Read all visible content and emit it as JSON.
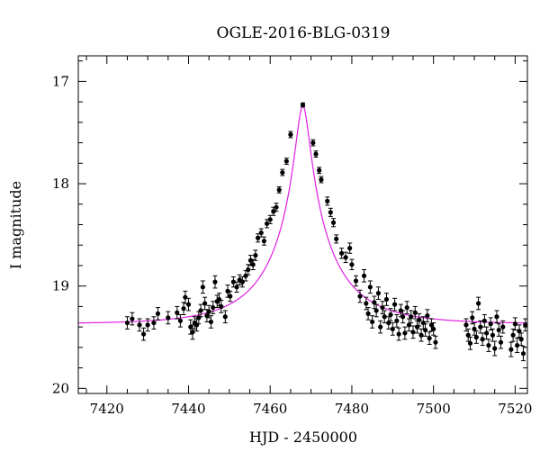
{
  "chart_data": {
    "type": "scatter",
    "title": "OGLE-2016-BLG-0319",
    "xlabel": "HJD - 2450000",
    "ylabel": "I magnitude",
    "xlim": [
      7413,
      7523
    ],
    "ylim": [
      20.05,
      16.75
    ],
    "y_axis_inverted": true,
    "x_ticks": [
      7420,
      7440,
      7460,
      7480,
      7500,
      7520
    ],
    "y_ticks": [
      17,
      18,
      19,
      20
    ],
    "colors": {
      "points": "#000000",
      "model": "#e020e0"
    },
    "model": {
      "type": "point-lens microlensing fit",
      "t0": 7468.0,
      "peak_mag": 17.24,
      "baseline_mag": 19.37,
      "u0": 0.095,
      "tE": 17.0
    },
    "series": [
      {
        "points": [
          [
            7425.0,
            19.36,
            0.06
          ],
          [
            7426.2,
            19.32,
            0.06
          ],
          [
            7428.0,
            19.38,
            0.06
          ],
          [
            7429.0,
            19.47,
            0.06
          ],
          [
            7430.0,
            19.38,
            0.06
          ],
          [
            7431.5,
            19.36,
            0.06
          ],
          [
            7432.5,
            19.27,
            0.06
          ],
          [
            7435.0,
            19.31,
            0.06
          ],
          [
            7437.2,
            19.26,
            0.06
          ],
          [
            7438.0,
            19.34,
            0.06
          ],
          [
            7438.8,
            19.22,
            0.06
          ],
          [
            7439.2,
            19.11,
            0.06
          ],
          [
            7440.0,
            19.18,
            0.06
          ],
          [
            7440.5,
            19.4,
            0.07
          ],
          [
            7441.0,
            19.45,
            0.07
          ],
          [
            7441.5,
            19.36,
            0.06
          ],
          [
            7442.0,
            19.38,
            0.06
          ],
          [
            7442.5,
            19.31,
            0.06
          ],
          [
            7443.0,
            19.24,
            0.06
          ],
          [
            7443.5,
            19.01,
            0.06
          ],
          [
            7444.0,
            19.17,
            0.06
          ],
          [
            7444.5,
            19.29,
            0.06
          ],
          [
            7445.0,
            19.25,
            0.06
          ],
          [
            7445.5,
            19.35,
            0.06
          ],
          [
            7446.0,
            19.21,
            0.06
          ],
          [
            7446.5,
            18.96,
            0.06
          ],
          [
            7447.0,
            19.15,
            0.06
          ],
          [
            7447.5,
            19.13,
            0.06
          ],
          [
            7448.0,
            19.2,
            0.06
          ],
          [
            7449.0,
            19.3,
            0.06
          ],
          [
            7449.6,
            19.05,
            0.06
          ],
          [
            7450.2,
            19.1,
            0.05
          ],
          [
            7451.0,
            18.96,
            0.05
          ],
          [
            7451.8,
            19.01,
            0.05
          ],
          [
            7452.5,
            18.94,
            0.05
          ],
          [
            7453.2,
            18.96,
            0.05
          ],
          [
            7454.0,
            18.9,
            0.05
          ],
          [
            7454.6,
            18.84,
            0.05
          ],
          [
            7455.2,
            18.75,
            0.05
          ],
          [
            7455.8,
            18.79,
            0.05
          ],
          [
            7456.4,
            18.7,
            0.05
          ],
          [
            7457.0,
            18.53,
            0.04
          ],
          [
            7457.8,
            18.48,
            0.04
          ],
          [
            7458.5,
            18.56,
            0.04
          ],
          [
            7459.2,
            18.39,
            0.04
          ],
          [
            7460.0,
            18.35,
            0.04
          ],
          [
            7460.8,
            18.27,
            0.04
          ],
          [
            7461.5,
            18.23,
            0.04
          ],
          [
            7462.2,
            18.06,
            0.03
          ],
          [
            7463.0,
            17.89,
            0.03
          ],
          [
            7464.0,
            17.78,
            0.03
          ],
          [
            7465.0,
            17.52,
            0.03
          ],
          [
            7468.0,
            17.23,
            0.02
          ],
          [
            7470.5,
            17.6,
            0.03
          ],
          [
            7471.2,
            17.71,
            0.03
          ],
          [
            7472.0,
            17.87,
            0.03
          ],
          [
            7472.5,
            17.96,
            0.03
          ],
          [
            7474.0,
            18.17,
            0.04
          ],
          [
            7474.8,
            18.28,
            0.04
          ],
          [
            7475.5,
            18.38,
            0.04
          ],
          [
            7476.2,
            18.54,
            0.04
          ],
          [
            7477.5,
            18.68,
            0.05
          ],
          [
            7478.5,
            18.72,
            0.05
          ],
          [
            7479.5,
            18.63,
            0.05
          ],
          [
            7480.0,
            18.79,
            0.05
          ],
          [
            7481.0,
            18.95,
            0.05
          ],
          [
            7482.0,
            19.1,
            0.06
          ],
          [
            7483.0,
            18.9,
            0.06
          ],
          [
            7483.5,
            19.17,
            0.06
          ],
          [
            7484.0,
            19.27,
            0.06
          ],
          [
            7484.5,
            19.01,
            0.06
          ],
          [
            7485.0,
            19.35,
            0.06
          ],
          [
            7485.5,
            19.16,
            0.06
          ],
          [
            7486.0,
            19.24,
            0.06
          ],
          [
            7486.5,
            19.07,
            0.06
          ],
          [
            7487.0,
            19.4,
            0.06
          ],
          [
            7487.5,
            19.21,
            0.06
          ],
          [
            7488.0,
            19.3,
            0.06
          ],
          [
            7488.5,
            19.13,
            0.06
          ],
          [
            7489.0,
            19.36,
            0.06
          ],
          [
            7489.5,
            19.28,
            0.06
          ],
          [
            7490.0,
            19.42,
            0.06
          ],
          [
            7490.5,
            19.18,
            0.06
          ],
          [
            7491.0,
            19.34,
            0.06
          ],
          [
            7491.5,
            19.47,
            0.06
          ],
          [
            7492.0,
            19.24,
            0.06
          ],
          [
            7492.5,
            19.3,
            0.06
          ],
          [
            7493.0,
            19.46,
            0.06
          ],
          [
            7493.5,
            19.21,
            0.06
          ],
          [
            7494.0,
            19.38,
            0.06
          ],
          [
            7494.5,
            19.3,
            0.06
          ],
          [
            7495.0,
            19.45,
            0.06
          ],
          [
            7495.5,
            19.26,
            0.06
          ],
          [
            7496.0,
            19.4,
            0.06
          ],
          [
            7496.5,
            19.33,
            0.06
          ],
          [
            7497.0,
            19.48,
            0.06
          ],
          [
            7497.5,
            19.36,
            0.06
          ],
          [
            7498.0,
            19.43,
            0.06
          ],
          [
            7498.5,
            19.29,
            0.06
          ],
          [
            7499.0,
            19.51,
            0.06
          ],
          [
            7499.5,
            19.38,
            0.06
          ],
          [
            7500.0,
            19.42,
            0.06
          ],
          [
            7500.5,
            19.55,
            0.06
          ],
          [
            7508.0,
            19.38,
            0.06
          ],
          [
            7508.5,
            19.48,
            0.06
          ],
          [
            7509.0,
            19.56,
            0.06
          ],
          [
            7509.5,
            19.31,
            0.06
          ],
          [
            7510.0,
            19.42,
            0.06
          ],
          [
            7510.5,
            19.5,
            0.06
          ],
          [
            7511.0,
            19.17,
            0.06
          ],
          [
            7511.5,
            19.4,
            0.06
          ],
          [
            7512.0,
            19.52,
            0.06
          ],
          [
            7512.5,
            19.34,
            0.06
          ],
          [
            7513.0,
            19.46,
            0.06
          ],
          [
            7513.5,
            19.58,
            0.06
          ],
          [
            7514.0,
            19.37,
            0.06
          ],
          [
            7514.5,
            19.48,
            0.06
          ],
          [
            7515.0,
            19.61,
            0.07
          ],
          [
            7515.5,
            19.3,
            0.06
          ],
          [
            7516.0,
            19.43,
            0.06
          ],
          [
            7516.5,
            19.55,
            0.06
          ],
          [
            7517.0,
            19.4,
            0.06
          ],
          [
            7519.0,
            19.62,
            0.07
          ],
          [
            7519.5,
            19.48,
            0.06
          ],
          [
            7520.0,
            19.37,
            0.06
          ],
          [
            7520.5,
            19.58,
            0.07
          ],
          [
            7521.0,
            19.44,
            0.06
          ],
          [
            7521.5,
            19.52,
            0.06
          ],
          [
            7522.0,
            19.66,
            0.07
          ],
          [
            7522.5,
            19.38,
            0.06
          ]
        ]
      }
    ]
  }
}
